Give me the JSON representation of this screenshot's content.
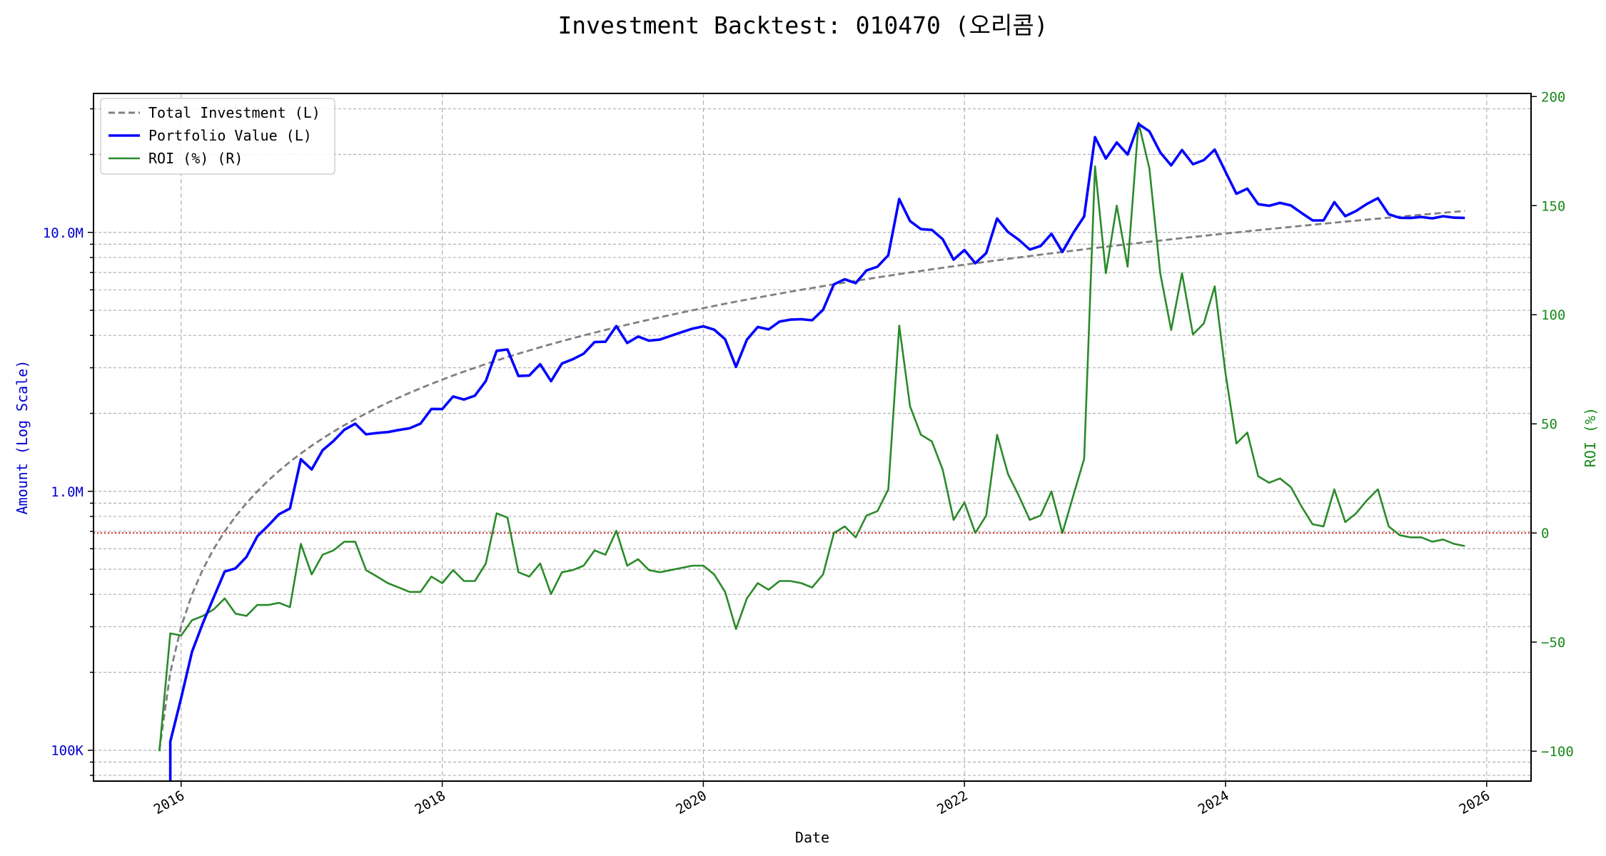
{
  "chart_data": {
    "type": "line",
    "title": "Investment Backtest: 010470 (오리콤)",
    "xlabel": "Date",
    "ylabel_left": "Amount (Log Scale)",
    "ylabel_right": "ROI (%)",
    "left_scale": "log",
    "ylim_left": [
      76000,
      34400000
    ],
    "ylim_right": [
      -113.7,
      201.4
    ],
    "xlim": [
      "2015-05",
      "2026-03"
    ],
    "x_ticks": [
      "2016",
      "2018",
      "2020",
      "2022",
      "2024",
      "2026"
    ],
    "left_ticks": [
      {
        "value": 100000,
        "label": "100K"
      },
      {
        "value": 1000000,
        "label": "1.0M"
      },
      {
        "value": 10000000,
        "label": "10.0M"
      }
    ],
    "right_ticks": [
      {
        "value": -100,
        "label": "-100"
      },
      {
        "value": -50,
        "label": "−50"
      },
      {
        "value": 0,
        "label": "0"
      },
      {
        "value": 50,
        "label": "50"
      },
      {
        "value": 100,
        "label": "100"
      },
      {
        "value": 150,
        "label": "150"
      },
      {
        "value": 200,
        "label": "200"
      }
    ],
    "grid": true,
    "legend_position": "top-left",
    "reference_line": {
      "axis": "right",
      "value": 0,
      "color": "#cc0000",
      "style": "dotted"
    },
    "colors": {
      "total_investment": "#808080",
      "portfolio_value": "#0000ff",
      "roi": "#2a8a2a",
      "left_axis": "#0000cc",
      "right_axis": "#1a8a1a"
    },
    "x": [
      "2015-11",
      "2015-12",
      "2016-01",
      "2016-02",
      "2016-03",
      "2016-04",
      "2016-05",
      "2016-06",
      "2016-07",
      "2016-08",
      "2016-09",
      "2016-10",
      "2016-11",
      "2016-12",
      "2017-01",
      "2017-02",
      "2017-03",
      "2017-04",
      "2017-05",
      "2017-06",
      "2017-07",
      "2017-08",
      "2017-09",
      "2017-10",
      "2017-11",
      "2017-12",
      "2018-01",
      "2018-02",
      "2018-03",
      "2018-04",
      "2018-05",
      "2018-06",
      "2018-07",
      "2018-08",
      "2018-09",
      "2018-10",
      "2018-11",
      "2018-12",
      "2019-01",
      "2019-02",
      "2019-03",
      "2019-04",
      "2019-05",
      "2019-06",
      "2019-07",
      "2019-08",
      "2019-09",
      "2019-10",
      "2019-11",
      "2019-12",
      "2020-01",
      "2020-02",
      "2020-03",
      "2020-04",
      "2020-05",
      "2020-06",
      "2020-07",
      "2020-08",
      "2020-09",
      "2020-10",
      "2020-11",
      "2020-12",
      "2021-01",
      "2021-02",
      "2021-03",
      "2021-04",
      "2021-05",
      "2021-06",
      "2021-07",
      "2021-08",
      "2021-09",
      "2021-10",
      "2021-11",
      "2021-12",
      "2022-01",
      "2022-02",
      "2022-03",
      "2022-04",
      "2022-05",
      "2022-06",
      "2022-07",
      "2022-08",
      "2022-09",
      "2022-10",
      "2022-11",
      "2022-12",
      "2023-01",
      "2023-02",
      "2023-03",
      "2023-04",
      "2023-05",
      "2023-06",
      "2023-07",
      "2023-08",
      "2023-09",
      "2023-10",
      "2023-11",
      "2023-12",
      "2024-01",
      "2024-02",
      "2024-03",
      "2024-04",
      "2024-05",
      "2024-06",
      "2024-07",
      "2024-08",
      "2024-09",
      "2024-10",
      "2024-11",
      "2024-12",
      "2025-01",
      "2025-02",
      "2025-03",
      "2025-04",
      "2025-05",
      "2025-06",
      "2025-07",
      "2025-08",
      "2025-09",
      "2025-10",
      "2025-11"
    ],
    "series": [
      {
        "name": "Total Investment (L)",
        "axis": "left",
        "style": "dashed",
        "values": [
          100000,
          200000,
          300000,
          400000,
          500000,
          600000,
          700000,
          800000,
          900000,
          1000000,
          1100000,
          1200000,
          1300000,
          1400000,
          1500000,
          1600000,
          1700000,
          1800000,
          1900000,
          2000000,
          2100000,
          2200000,
          2300000,
          2400000,
          2500000,
          2600000,
          2700000,
          2800000,
          2900000,
          3000000,
          3100000,
          3200000,
          3300000,
          3400000,
          3500000,
          3600000,
          3700000,
          3800000,
          3900000,
          4000000,
          4100000,
          4200000,
          4300000,
          4400000,
          4500000,
          4600000,
          4700000,
          4800000,
          4900000,
          5000000,
          5100000,
          5200000,
          5300000,
          5400000,
          5500000,
          5600000,
          5700000,
          5800000,
          5900000,
          6000000,
          6100000,
          6200000,
          6300000,
          6400000,
          6500000,
          6600000,
          6700000,
          6800000,
          6900000,
          7000000,
          7100000,
          7200000,
          7300000,
          7400000,
          7500000,
          7600000,
          7700000,
          7800000,
          7900000,
          8000000,
          8100000,
          8200000,
          8300000,
          8400000,
          8500000,
          8600000,
          8700000,
          8800000,
          8900000,
          9000000,
          9100000,
          9200000,
          9300000,
          9400000,
          9500000,
          9600000,
          9700000,
          9800000,
          9900000,
          10000000,
          10100000,
          10200000,
          10300000,
          10400000,
          10500000,
          10600000,
          10700000,
          10800000,
          10900000,
          11000000,
          11100000,
          11200000,
          11300000,
          11400000,
          11500000,
          11600000,
          11700000,
          11800000,
          11900000,
          12000000,
          12100000
        ]
      },
      {
        "name": "Portfolio Value (L)",
        "axis": "left",
        "style": "solid",
        "values": [
          0,
          108000,
          159000,
          240000,
          310000,
          390000,
          490000,
          504000,
          558000,
          670000,
          737000,
          816000,
          858000,
          1330000,
          1215000,
          1440000,
          1564000,
          1728000,
          1824000,
          1660000,
          1680000,
          1694000,
          1725000,
          1752000,
          1825000,
          2080000,
          2079000,
          2324000,
          2262000,
          2340000,
          2666000,
          3488000,
          3531000,
          2788000,
          2800000,
          3096000,
          2664000,
          3116000,
          3237000,
          3400000,
          3772000,
          3780000,
          4343000,
          3740000,
          3960000,
          3818000,
          3854000,
          3984000,
          4116000,
          4250000,
          4335000,
          4212000,
          3869000,
          3024000,
          3850000,
          4312000,
          4218000,
          4524000,
          4602000,
          4620000,
          4575000,
          5022000,
          6300000,
          6592000,
          6370000,
          7128000,
          7370000,
          8160000,
          13455000,
          11060000,
          10295000,
          10224000,
          9417000,
          7844000,
          8550000,
          7600000,
          8316000,
          11310000,
          10033000,
          9360000,
          8586000,
          8856000,
          9877000,
          8400000,
          9945000,
          11524000,
          23316000,
          19272000,
          22250000,
          19980000,
          26208000,
          24564000,
          20367000,
          18142000,
          20805000,
          18336000,
          19012000,
          20874000,
          17127000,
          14100000,
          14746000,
          12852000,
          12669000,
          13000000,
          12705000,
          11872000,
          11128000,
          11124000,
          13080000,
          11550000,
          12099000,
          12880000,
          13560000,
          11742000,
          11385000,
          11368000,
          11466000,
          11328000,
          11543000,
          11400000,
          11374000
        ]
      },
      {
        "name": "ROI (%) (R)",
        "axis": "right",
        "style": "solid",
        "values": [
          -100,
          -46,
          -47,
          -40,
          -38,
          -35,
          -30,
          -37,
          -38,
          -33,
          -33,
          -32,
          -34,
          -5,
          -19,
          -10,
          -8,
          -4,
          -4,
          -17,
          -20,
          -23,
          -25,
          -27,
          -27,
          -20,
          -23,
          -17,
          -22,
          -22,
          -14,
          9,
          7,
          -18,
          -20,
          -14,
          -28,
          -18,
          -17,
          -15,
          -8,
          -10,
          1,
          -15,
          -12,
          -17,
          -18,
          -17,
          -16,
          -15,
          -15,
          -19,
          -27,
          -44,
          -30,
          -23,
          -26,
          -22,
          -22,
          -23,
          -25,
          -19,
          0,
          3,
          -2,
          8,
          10,
          20,
          95,
          58,
          45,
          42,
          29,
          6,
          14,
          0,
          8,
          45,
          27,
          17,
          6,
          8,
          19,
          0,
          17,
          34,
          168,
          119,
          150,
          122,
          188,
          167,
          119,
          93,
          119,
          91,
          96,
          113,
          73,
          41,
          46,
          26,
          23,
          25,
          21,
          12,
          4,
          3,
          20,
          5,
          9,
          15,
          20,
          3,
          -1,
          -2,
          -2,
          -4,
          -3,
          -5,
          -6
        ]
      }
    ]
  }
}
